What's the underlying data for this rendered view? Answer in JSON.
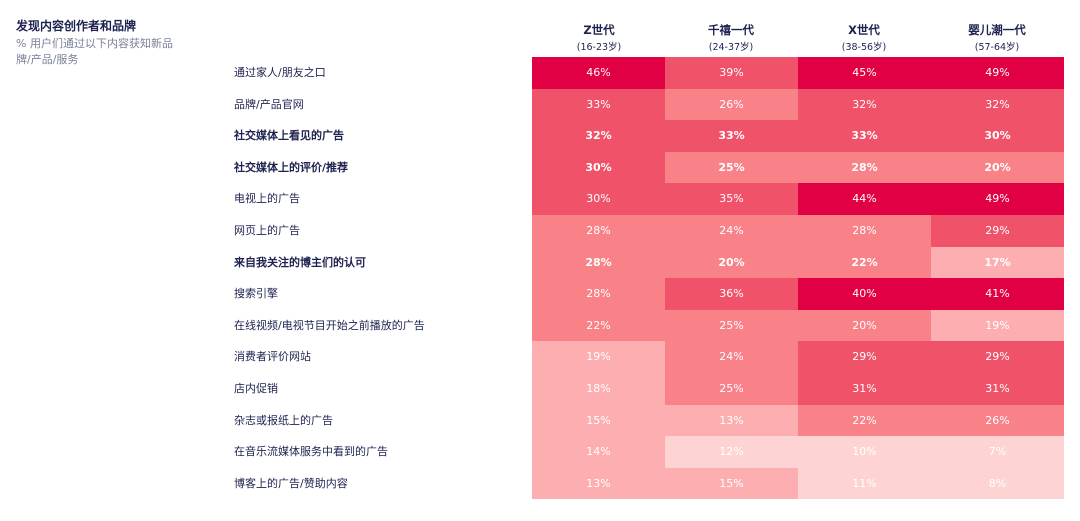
{
  "header": {
    "title": "发现内容创作者和品牌",
    "subtitle": "% 用户们通过以下内容获知新品牌/产品/服务"
  },
  "chart_data": {
    "type": "heatmap",
    "columns": [
      {
        "name": "Z世代",
        "range": "(16-23岁)"
      },
      {
        "name": "千禧一代",
        "range": "(24-37岁)"
      },
      {
        "name": "X世代",
        "range": "(38-56岁)"
      },
      {
        "name": "婴儿潮一代",
        "range": "(57-64岁)"
      }
    ],
    "rows": [
      {
        "label": "通过家人/朋友之口",
        "bold": false,
        "values": [
          "46%",
          "39%",
          "45%",
          "49%"
        ]
      },
      {
        "label": "品牌/产品官网",
        "bold": false,
        "values": [
          "33%",
          "26%",
          "32%",
          "32%"
        ]
      },
      {
        "label": "社交媒体上看见的广告",
        "bold": true,
        "values": [
          "32%",
          "33%",
          "33%",
          "30%"
        ]
      },
      {
        "label": "社交媒体上的评价/推荐",
        "bold": true,
        "values": [
          "30%",
          "25%",
          "28%",
          "20%"
        ]
      },
      {
        "label": "电视上的广告",
        "bold": false,
        "values": [
          "30%",
          "35%",
          "44%",
          "49%"
        ]
      },
      {
        "label": "网页上的广告",
        "bold": false,
        "values": [
          "28%",
          "24%",
          "28%",
          "29%"
        ]
      },
      {
        "label": "来自我关注的博主们的认可",
        "bold": true,
        "values": [
          "28%",
          "20%",
          "22%",
          "17%"
        ]
      },
      {
        "label": "搜索引擎",
        "bold": false,
        "values": [
          "28%",
          "36%",
          "40%",
          "41%"
        ]
      },
      {
        "label": "在线视频/电视节目开始之前播放的广告",
        "bold": false,
        "values": [
          "22%",
          "25%",
          "20%",
          "19%"
        ]
      },
      {
        "label": "消费者评价网站",
        "bold": false,
        "values": [
          "19%",
          "24%",
          "29%",
          "29%"
        ]
      },
      {
        "label": "店内促销",
        "bold": false,
        "values": [
          "18%",
          "25%",
          "31%",
          "31%"
        ]
      },
      {
        "label": "杂志或报纸上的广告",
        "bold": false,
        "values": [
          "15%",
          "13%",
          "22%",
          "26%"
        ]
      },
      {
        "label": "在音乐流媒体服务中看到的广告",
        "bold": false,
        "values": [
          "14%",
          "12%",
          "10%",
          "7%"
        ]
      },
      {
        "label": "博客上的广告/赞助内容",
        "bold": false,
        "values": [
          "13%",
          "15%",
          "11%",
          "8%"
        ]
      }
    ],
    "color_scale": [
      {
        "min": 40,
        "color": "#e20044"
      },
      {
        "min": 29,
        "color": "#f05369"
      },
      {
        "min": 20,
        "color": "#f98188"
      },
      {
        "min": 13,
        "color": "#fdaeb1"
      },
      {
        "min": 0,
        "color": "#fed3d4"
      }
    ]
  }
}
